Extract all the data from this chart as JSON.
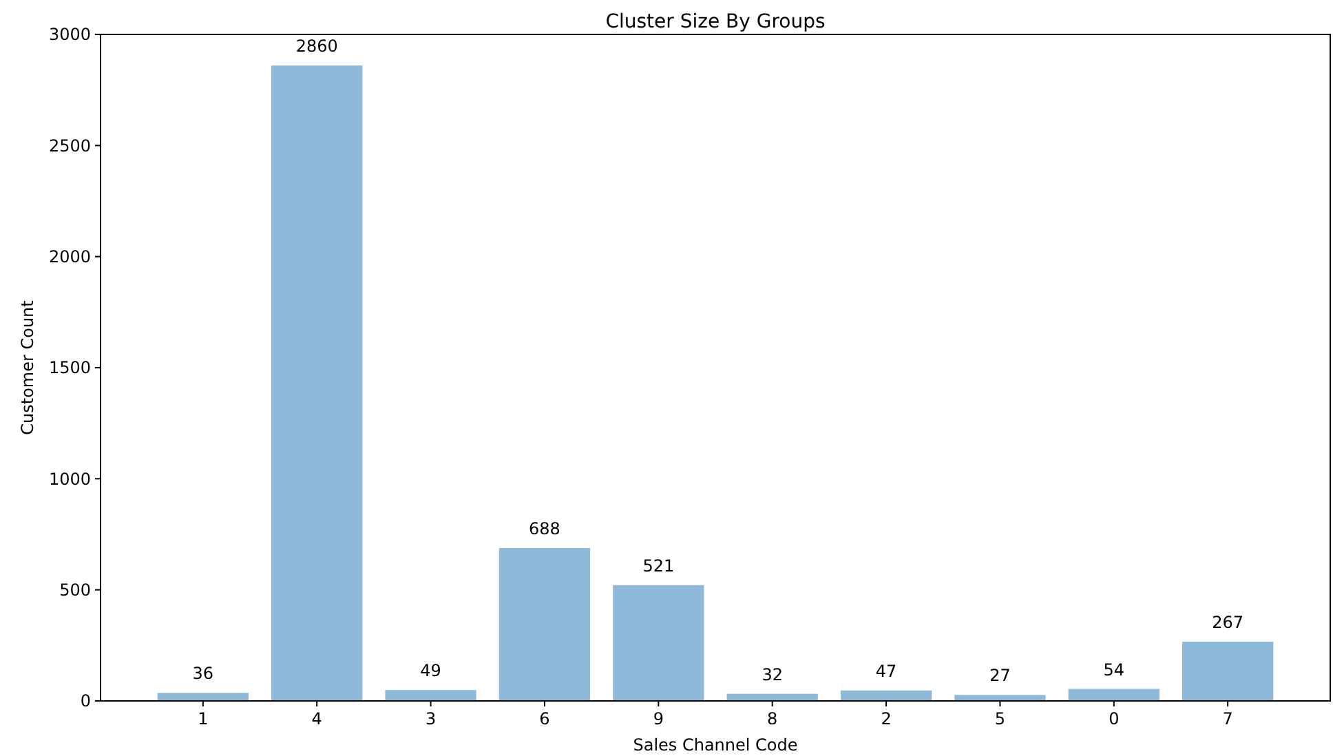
{
  "chart_data": {
    "type": "bar",
    "title": "Cluster Size By Groups",
    "xlabel": "Sales Channel Code",
    "ylabel": "Customer Count",
    "categories": [
      "1",
      "4",
      "3",
      "6",
      "9",
      "8",
      "2",
      "5",
      "0",
      "7"
    ],
    "values": [
      36,
      2860,
      49,
      688,
      521,
      32,
      47,
      27,
      54,
      267
    ],
    "color": "#8fb9d9",
    "ylim": [
      0,
      3000
    ],
    "yticks": [
      0,
      500,
      1000,
      1500,
      2000,
      2500,
      3000
    ],
    "data_labels": true
  }
}
